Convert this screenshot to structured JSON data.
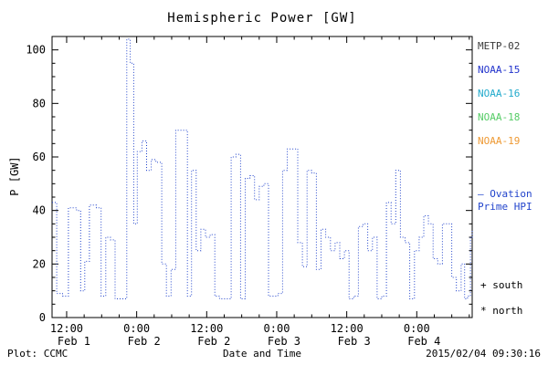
{
  "title": "Hemispheric Power [GW]",
  "axes": {
    "ylabel": "P [GW]",
    "xlabel": "Date and Time",
    "y_ticks": [
      0,
      20,
      40,
      60,
      80,
      100
    ],
    "ylim": [
      0,
      105
    ],
    "x_range_hours": [
      0,
      72
    ],
    "x_ticks": [
      {
        "h": 2.5,
        "time": "12:00",
        "date": "Feb 1"
      },
      {
        "h": 14.5,
        "time": "0:00",
        "date": "Feb 2"
      },
      {
        "h": 26.5,
        "time": "12:00",
        "date": "Feb 2"
      },
      {
        "h": 38.5,
        "time": "0:00",
        "date": "Feb 3"
      },
      {
        "h": 50.5,
        "time": "12:00",
        "date": "Feb 3"
      },
      {
        "h": 62.5,
        "time": "0:00",
        "date": "Feb 4"
      }
    ]
  },
  "legend": {
    "satellites": [
      {
        "label": "METP-02",
        "color": "#3a3a3a"
      },
      {
        "label": "NOAA-15",
        "color": "#2233cc"
      },
      {
        "label": "NOAA-16",
        "color": "#22aacc"
      },
      {
        "label": "NOAA-18",
        "color": "#55cc66"
      },
      {
        "label": "NOAA-19",
        "color": "#ee9933"
      }
    ],
    "ovation_line1": "– Ovation",
    "ovation_line2": "Prime HPI",
    "ovation_color": "#2244cc",
    "south": "+ south",
    "north": "* north"
  },
  "footer": {
    "left": "Plot: CCMC",
    "right": "2015/02/04 09:30:16"
  },
  "chart_data": {
    "type": "line",
    "title": "Hemispheric Power [GW]",
    "xlabel": "Date and Time",
    "ylabel": "P [GW]",
    "ylim": [
      0,
      105
    ],
    "x_axis": "hours since 2015-02-01 09:30 UT",
    "x_tick_labels": [
      "12:00 Feb 1",
      "0:00 Feb 2",
      "12:00 Feb 2",
      "0:00 Feb 3",
      "12:00 Feb 3",
      "0:00 Feb 4"
    ],
    "grid": false,
    "legend_position": "right",
    "series": [
      {
        "name": "Ovation Prime HPI",
        "color": "#2244cc",
        "style": "dotted-step",
        "x": [
          0,
          0.8,
          1.8,
          2.8,
          4.2,
          4.9,
          5.6,
          6.4,
          7.6,
          8.4,
          9.2,
          10.0,
          10.8,
          12.0,
          12.8,
          13.4,
          14.0,
          14.6,
          15.4,
          16.2,
          17.0,
          17.8,
          18.8,
          19.6,
          20.4,
          21.2,
          22.0,
          23.2,
          23.9,
          24.7,
          25.5,
          26.3,
          27.1,
          27.9,
          28.7,
          29.5,
          30.7,
          31.5,
          32.3,
          33.1,
          33.9,
          34.7,
          35.5,
          36.3,
          37.1,
          37.9,
          38.7,
          39.5,
          40.3,
          41.1,
          42.1,
          42.9,
          43.7,
          44.5,
          45.3,
          46.1,
          46.9,
          47.7,
          48.5,
          49.3,
          50.1,
          50.9,
          51.7,
          52.5,
          53.3,
          54.1,
          54.9,
          55.7,
          56.5,
          57.3,
          58.1,
          58.9,
          59.7,
          60.5,
          61.3,
          62.1,
          62.9,
          63.7,
          64.5,
          65.3,
          66.1,
          66.9,
          67.7,
          68.5,
          69.3,
          70.1,
          70.7,
          71.2,
          71.7,
          72.0
        ],
        "values": [
          43,
          9,
          8,
          41,
          40,
          10,
          21,
          42,
          41,
          8,
          30,
          29,
          7,
          7,
          104,
          95,
          35,
          62,
          66,
          55,
          59,
          58,
          20,
          8,
          18,
          70,
          70,
          8,
          55,
          25,
          33,
          30,
          31,
          8,
          7,
          7,
          60,
          61,
          7,
          52,
          53,
          44,
          49,
          50,
          8,
          8,
          9,
          55,
          63,
          63,
          28,
          19,
          55,
          54,
          18,
          33,
          30,
          25,
          28,
          22,
          25,
          7,
          8,
          34,
          35,
          25,
          30,
          7,
          8,
          43,
          35,
          55,
          30,
          28,
          7,
          25,
          30,
          38,
          35,
          22,
          20,
          35,
          35,
          15,
          10,
          20,
          7,
          8,
          30,
          33
        ]
      }
    ]
  }
}
